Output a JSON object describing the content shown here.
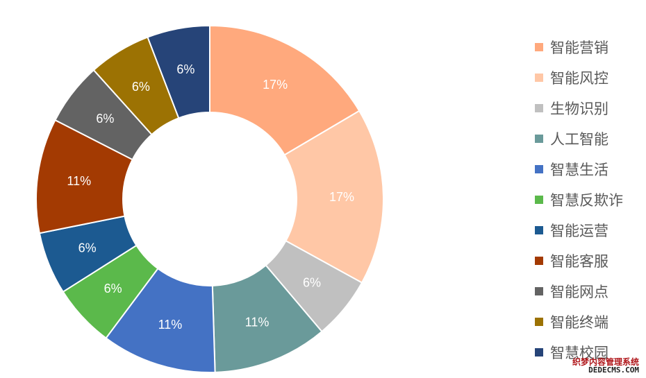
{
  "chart_data": {
    "type": "pie",
    "title": "",
    "donut": true,
    "legend_position": "right",
    "slices": [
      {
        "label": "智能营销",
        "value": 17,
        "display": "17%",
        "color": "#FFA97D"
      },
      {
        "label": "智能风控",
        "value": 17,
        "display": "17%",
        "color": "#FFC7A6"
      },
      {
        "label": "生物识别",
        "value": 6,
        "display": "6%",
        "color": "#C0C0C0"
      },
      {
        "label": "人工智能",
        "value": 11,
        "display": "11%",
        "color": "#6A9A9A"
      },
      {
        "label": "智慧生活",
        "value": 11,
        "display": "11%",
        "color": "#4472C4"
      },
      {
        "label": "智慧反欺诈",
        "value": 6,
        "display": "6%",
        "color": "#5BB94B"
      },
      {
        "label": "智能运营",
        "value": 6,
        "display": "6%",
        "color": "#1C5A91"
      },
      {
        "label": "智能客服",
        "value": 11,
        "display": "11%",
        "color": "#A33A02"
      },
      {
        "label": "智能网点",
        "value": 6,
        "display": "6%",
        "color": "#636363"
      },
      {
        "label": "智能终端",
        "value": 6,
        "display": "6%",
        "color": "#9C7203"
      },
      {
        "label": "智慧校园",
        "value": 6,
        "display": "6%",
        "color": "#264478"
      }
    ]
  },
  "watermark": {
    "line1": "织梦内容管理系统",
    "line2": "DEDECMS.COM"
  }
}
